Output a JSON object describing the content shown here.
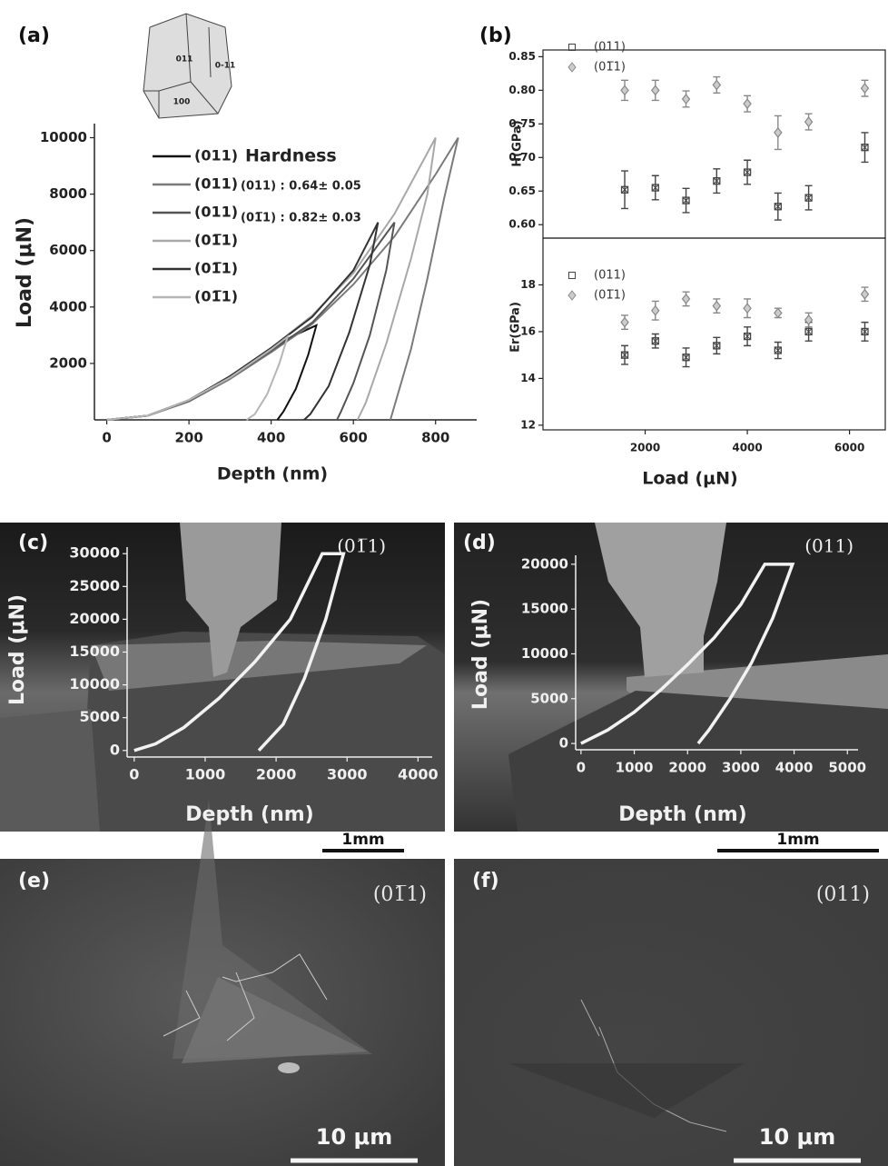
{
  "chart_data": [
    {
      "type": "line",
      "panel_label": "(a)",
      "x_label": "Depth (nm)",
      "y_label": "Load (μN)",
      "xlim": [
        -30,
        900
      ],
      "ylim": [
        0,
        10500
      ],
      "xticks": [
        0,
        200,
        400,
        600,
        800
      ],
      "yticks": [
        2000,
        4000,
        6000,
        8000,
        10000
      ],
      "annotations": [
        "Hardness",
        "(011) : 0.64± 0.05",
        "(01̅1) : 0.82± 0.03"
      ],
      "crystal_faces": [
        "011",
        "0-11",
        "100"
      ],
      "series": [
        {
          "name": "(011)",
          "color": "#111111",
          "x": [
            0,
            100,
            200,
            300,
            400,
            450,
            510,
            490,
            460,
            430,
            415
          ],
          "y": [
            0,
            150,
            700,
            1500,
            2500,
            2950,
            3350,
            2300,
            1100,
            300,
            0
          ]
        },
        {
          "name": "(011)",
          "color": "#7a7a7a",
          "x": [
            0,
            100,
            200,
            300,
            400,
            500,
            600,
            700,
            800,
            855,
            820,
            780,
            740,
            700,
            690
          ],
          "y": [
            0,
            150,
            650,
            1450,
            2400,
            3400,
            4800,
            6500,
            8700,
            10000,
            7800,
            5000,
            2500,
            500,
            0
          ]
        },
        {
          "name": "(011)",
          "color": "#555555",
          "x": [
            0,
            100,
            200,
            300,
            400,
            500,
            600,
            700,
            680,
            640,
            600,
            570,
            560
          ],
          "y": [
            0,
            150,
            680,
            1500,
            2450,
            3450,
            5000,
            7000,
            5300,
            3000,
            1300,
            300,
            0
          ]
        },
        {
          "name": "(01̅1)",
          "color": "#a8a8a8",
          "x": [
            0,
            100,
            200,
            300,
            400,
            500,
            600,
            700,
            800,
            780,
            740,
            680,
            630,
            610
          ],
          "y": [
            0,
            150,
            700,
            1550,
            2550,
            3700,
            5200,
            7300,
            10000,
            8000,
            5700,
            2700,
            600,
            0
          ]
        },
        {
          "name": "(01̅1)",
          "color": "#333333",
          "x": [
            0,
            100,
            200,
            300,
            400,
            500,
            600,
            660,
            640,
            590,
            540,
            495,
            480
          ],
          "y": [
            0,
            150,
            700,
            1550,
            2550,
            3650,
            5300,
            7000,
            5500,
            3100,
            1200,
            200,
            0
          ]
        },
        {
          "name": "(01̅1)",
          "color": "#b5b5b5",
          "x": [
            0,
            100,
            200,
            300,
            400,
            440,
            420,
            390,
            360,
            340
          ],
          "y": [
            0,
            150,
            700,
            1500,
            2500,
            2950,
            2000,
            900,
            200,
            0
          ]
        }
      ]
    },
    {
      "type": "scatter",
      "panel_label": "(b)",
      "y_label": "H(GPa)",
      "xlim": [
        0,
        6700
      ],
      "ylim": [
        0.58,
        0.86
      ],
      "yticks": [
        {
          "value": 0.6,
          "label": "0.60"
        },
        0.65,
        {
          "value": 0.7,
          "label": "0.70"
        },
        0.75,
        {
          "value": 0.8,
          "label": "0.80"
        },
        0.85
      ],
      "x": [
        1600,
        2200,
        2800,
        3400,
        4000,
        4600,
        5200,
        6300
      ],
      "series": [
        {
          "name": "(011)",
          "color": "#444444",
          "values": [
            0.652,
            0.655,
            0.636,
            0.665,
            0.678,
            0.627,
            0.64,
            0.715
          ],
          "errors": [
            0.028,
            0.018,
            0.018,
            0.018,
            0.018,
            0.02,
            0.018,
            0.022
          ]
        },
        {
          "name": "(01̅1)",
          "color": "#888888",
          "values": [
            0.8,
            0.8,
            0.787,
            0.808,
            0.78,
            0.737,
            0.753,
            0.803
          ],
          "errors": [
            0.015,
            0.015,
            0.012,
            0.012,
            0.012,
            0.025,
            0.012,
            0.012
          ]
        }
      ]
    },
    {
      "type": "scatter",
      "x_label": "Load (μN)",
      "y_label": "Er(GPa)",
      "xlim": [
        0,
        6700
      ],
      "ylim": [
        11.8,
        20
      ],
      "xticks": [
        2000,
        4000,
        6000
      ],
      "yticks": [
        12,
        14,
        16,
        18
      ],
      "x": [
        1600,
        2200,
        2800,
        3400,
        4000,
        4600,
        5200,
        6300
      ],
      "series": [
        {
          "name": "(011)",
          "color": "#444444",
          "values": [
            15.0,
            15.6,
            14.9,
            15.4,
            15.8,
            15.2,
            16.0,
            16.0
          ],
          "errors": [
            0.4,
            0.3,
            0.4,
            0.35,
            0.4,
            0.35,
            0.4,
            0.4
          ]
        },
        {
          "name": "(01̅1)",
          "color": "#888888",
          "values": [
            16.4,
            16.9,
            17.4,
            17.1,
            17.0,
            16.8,
            16.5,
            17.6
          ],
          "errors": [
            0.3,
            0.4,
            0.3,
            0.3,
            0.4,
            0.2,
            0.3,
            0.3
          ]
        }
      ]
    },
    {
      "type": "line",
      "panel_label": "(c)",
      "corner_label": "(01̅1)",
      "scale_bar": "1mm",
      "x_label": "Depth (nm)",
      "y_label": "Load (μN)",
      "xlim": [
        -100,
        4200
      ],
      "ylim": [
        -1000,
        31000
      ],
      "xticks": [
        0,
        1000,
        2000,
        3000,
        4000
      ],
      "yticks": [
        0,
        5000,
        10000,
        15000,
        20000,
        25000,
        30000
      ],
      "series": [
        {
          "color": "#f2f2f2",
          "x": [
            0,
            300,
            700,
            1200,
            1700,
            2200,
            2650,
            2950,
            2700,
            2400,
            2100,
            1756
          ],
          "y": [
            0,
            1000,
            3500,
            8000,
            13500,
            20000,
            30000,
            30000,
            20000,
            11000,
            4000,
            0
          ]
        }
      ]
    },
    {
      "type": "line",
      "panel_label": "(d)",
      "corner_label": "(011)",
      "scale_bar": "1mm",
      "x_label": "Depth (nm)",
      "y_label": "Load (μN)",
      "xlim": [
        -100,
        5200
      ],
      "ylim": [
        -700,
        21000
      ],
      "xticks": [
        0,
        1000,
        2000,
        3000,
        4000,
        5000
      ],
      "yticks": [
        0,
        5000,
        10000,
        15000,
        20000
      ],
      "series": [
        {
          "color": "#f2f2f2",
          "x": [
            0,
            500,
            1000,
            1500,
            2000,
            2500,
            3000,
            3450,
            3970,
            3600,
            3200,
            2800,
            2400,
            2200
          ],
          "y": [
            0,
            1500,
            3500,
            6000,
            8800,
            11800,
            15500,
            20000,
            20000,
            14000,
            9000,
            5000,
            1500,
            0
          ]
        }
      ]
    }
  ],
  "images": [
    {
      "panel_label": "(e)",
      "corner_label": "(01̅1)",
      "scale_bar": "10 μm"
    },
    {
      "panel_label": "(f)",
      "corner_label": "(011)",
      "scale_bar": "10 μm"
    }
  ]
}
